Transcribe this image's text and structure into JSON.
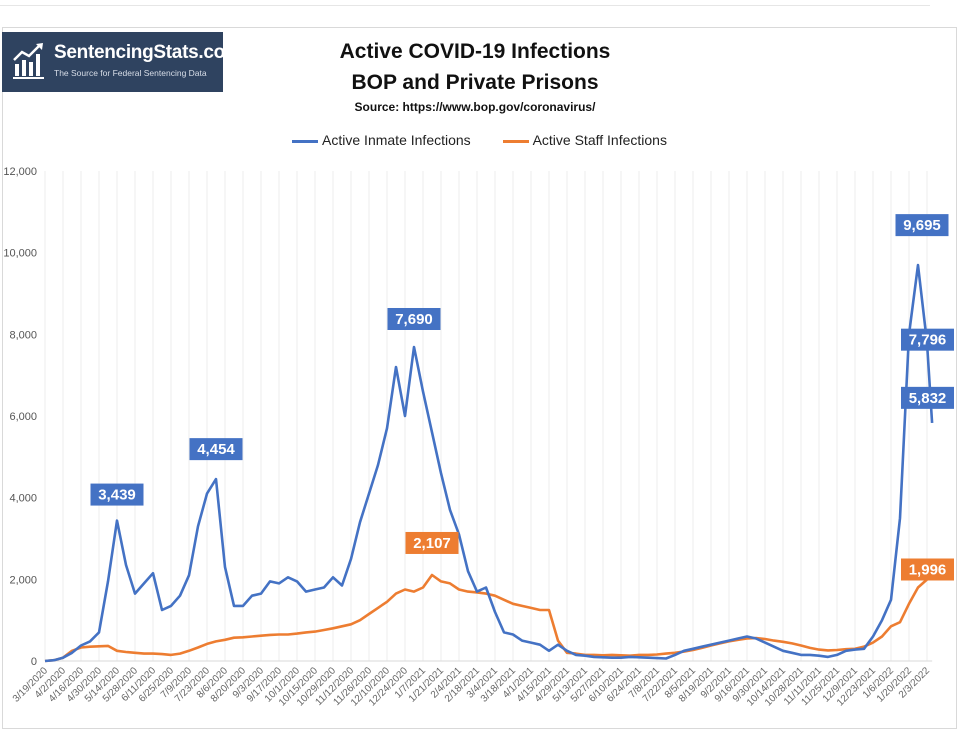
{
  "logo": {
    "name": "SentencingStats.com",
    "tagline": "The Source for Federal Sentencing Data",
    "icon": "bar-chart-rising-icon"
  },
  "chart_data": {
    "type": "line",
    "title": "Active COVID-19 Infections",
    "subtitle": "BOP and Private Prisons",
    "source": "Source: https://www.bop.gov/coronavirus/",
    "legend_position": "top",
    "ylim": [
      0,
      12000
    ],
    "yticks": [
      "0",
      "2,000",
      "4,000",
      "6,000",
      "8,000",
      "10,000",
      "12,000"
    ],
    "ytick_values": [
      0,
      2000,
      4000,
      6000,
      8000,
      10000,
      12000
    ],
    "xtick_labels": [
      "3/19/2020",
      "4/2/2020",
      "4/16/2020",
      "4/30/2020",
      "5/14/2020",
      "5/28/2020",
      "6/11/2020",
      "6/25/2020",
      "7/9/2020",
      "7/23/2020",
      "8/6/2020",
      "8/20/2020",
      "9/3/2020",
      "9/17/2020",
      "10/1/2020",
      "10/15/2020",
      "10/29/2020",
      "11/12/2020",
      "11/26/2020",
      "12/10/2020",
      "12/24/2020",
      "1/7/2021",
      "1/21/2021",
      "2/4/2021",
      "2/18/2021",
      "3/4/2021",
      "3/18/2021",
      "4/1/2021",
      "4/15/2021",
      "4/29/2021",
      "5/13/2021",
      "5/27/2021",
      "6/10/2021",
      "6/24/2021",
      "7/8/2021",
      "7/22/2021",
      "8/5/2021",
      "8/19/2021",
      "9/2/2021",
      "9/16/2021",
      "9/30/2021",
      "10/14/2021",
      "10/28/2021",
      "11/11/2021",
      "11/25/2021",
      "12/9/2021",
      "12/23/2021",
      "1/6/2022",
      "1/20/2022",
      "2/3/2022"
    ],
    "grid": {
      "vertical": true,
      "horizontal": false
    },
    "x": [
      "3/19/2020",
      "3/26/2020",
      "4/2/2020",
      "4/9/2020",
      "4/16/2020",
      "4/23/2020",
      "4/30/2020",
      "5/7/2020",
      "5/14/2020",
      "5/21/2020",
      "5/28/2020",
      "6/4/2020",
      "6/11/2020",
      "6/18/2020",
      "6/25/2020",
      "7/2/2020",
      "7/9/2020",
      "7/16/2020",
      "7/23/2020",
      "7/30/2020",
      "8/6/2020",
      "8/13/2020",
      "8/20/2020",
      "8/27/2020",
      "9/3/2020",
      "9/10/2020",
      "9/17/2020",
      "9/24/2020",
      "10/1/2020",
      "10/8/2020",
      "10/15/2020",
      "10/22/2020",
      "10/29/2020",
      "11/5/2020",
      "11/12/2020",
      "11/19/2020",
      "11/26/2020",
      "12/3/2020",
      "12/10/2020",
      "12/17/2020",
      "12/24/2020",
      "12/31/2020",
      "1/7/2021",
      "1/14/2021",
      "1/21/2021",
      "1/28/2021",
      "2/4/2021",
      "2/11/2021",
      "2/18/2021",
      "2/25/2021",
      "3/4/2021",
      "3/11/2021",
      "3/18/2021",
      "3/25/2021",
      "4/1/2021",
      "4/8/2021",
      "4/15/2021",
      "4/22/2021",
      "4/29/2021",
      "5/6/2021",
      "5/13/2021",
      "5/20/2021",
      "5/27/2021",
      "6/3/2021",
      "6/10/2021",
      "6/17/2021",
      "6/24/2021",
      "7/1/2021",
      "7/8/2021",
      "7/15/2021",
      "7/22/2021",
      "7/29/2021",
      "8/5/2021",
      "8/12/2021",
      "8/19/2021",
      "8/26/2021",
      "9/2/2021",
      "9/9/2021",
      "9/16/2021",
      "9/23/2021",
      "9/30/2021",
      "10/7/2021",
      "10/14/2021",
      "10/21/2021",
      "10/28/2021",
      "11/4/2021",
      "11/11/2021",
      "11/18/2021",
      "11/25/2021",
      "12/2/2021",
      "12/9/2021",
      "12/16/2021",
      "12/23/2021",
      "12/30/2021",
      "1/6/2022",
      "1/13/2022",
      "1/20/2022",
      "1/27/2022",
      "2/3/2022",
      "2/7/2022"
    ],
    "series": [
      {
        "name": "Active Inmate Infections",
        "color": "#4472c4",
        "values": [
          0,
          20,
          80,
          200,
          380,
          480,
          700,
          1950,
          3439,
          2350,
          1650,
          1900,
          2150,
          1250,
          1350,
          1600,
          2100,
          3300,
          4100,
          4454,
          2300,
          1350,
          1350,
          1600,
          1650,
          1950,
          1900,
          2050,
          1950,
          1700,
          1750,
          1800,
          2050,
          1850,
          2500,
          3400,
          4100,
          4800,
          5700,
          7200,
          6000,
          7690,
          6600,
          5600,
          4600,
          3700,
          3100,
          2200,
          1700,
          1800,
          1200,
          700,
          650,
          500,
          450,
          400,
          250,
          400,
          250,
          150,
          130,
          100,
          90,
          80,
          80,
          100,
          90,
          80,
          70,
          60,
          150,
          250,
          300,
          350,
          400,
          450,
          500,
          550,
          600,
          550,
          450,
          350,
          250,
          200,
          150,
          150,
          130,
          100,
          150,
          250,
          280,
          300,
          600,
          1000,
          1500,
          3500,
          8000,
          9695,
          7796,
          5832
        ]
      },
      {
        "name": "Active Staff Infections",
        "color": "#ed7d31",
        "values": [
          0,
          20,
          80,
          250,
          330,
          350,
          360,
          370,
          250,
          220,
          200,
          180,
          180,
          170,
          150,
          180,
          250,
          330,
          420,
          480,
          520,
          570,
          580,
          600,
          620,
          640,
          650,
          650,
          670,
          700,
          720,
          760,
          800,
          850,
          900,
          1000,
          1150,
          1300,
          1450,
          1650,
          1750,
          1700,
          1800,
          2107,
          1950,
          1900,
          1750,
          1700,
          1680,
          1650,
          1600,
          1500,
          1400,
          1350,
          1300,
          1250,
          1250,
          500,
          200,
          180,
          150,
          150,
          140,
          150,
          140,
          130,
          150,
          150,
          160,
          180,
          200,
          230,
          270,
          320,
          380,
          430,
          480,
          520,
          550,
          560,
          540,
          500,
          470,
          430,
          380,
          320,
          280,
          260,
          270,
          290,
          300,
          350,
          450,
          600,
          850,
          950,
          1400,
          1800,
          1996,
          2050
        ]
      }
    ],
    "annotations": [
      {
        "series": 0,
        "date": "5/14/2020",
        "label": "3,439"
      },
      {
        "series": 0,
        "date": "7/30/2020",
        "label": "4,454"
      },
      {
        "series": 0,
        "date": "12/31/2020",
        "label": "7,690"
      },
      {
        "series": 0,
        "date": "1/27/2022",
        "label": "9,695"
      },
      {
        "series": 0,
        "date": "2/3/2022",
        "label": "7,796"
      },
      {
        "series": 0,
        "date": "2/7/2022",
        "label": "5,832"
      },
      {
        "series": 1,
        "date": "1/14/2021",
        "label": "2,107"
      },
      {
        "series": 1,
        "date": "2/3/2022",
        "label": "1,996"
      }
    ]
  }
}
